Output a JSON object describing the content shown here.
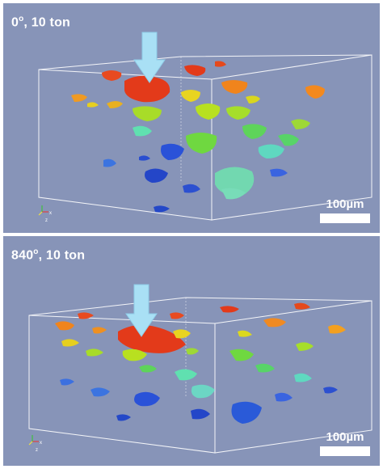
{
  "panels": [
    {
      "label_num": "0",
      "label_deg": "o",
      "label_rest": ", 10 ton",
      "scale_label": "100µm"
    },
    {
      "label_num": "840",
      "label_deg": "o",
      "label_rest": ", 10 ton",
      "scale_label": "100µm"
    }
  ],
  "colors": {
    "background": "#8794b8",
    "arrow": "#a9e0f5",
    "box_edge": "#ffffff"
  }
}
